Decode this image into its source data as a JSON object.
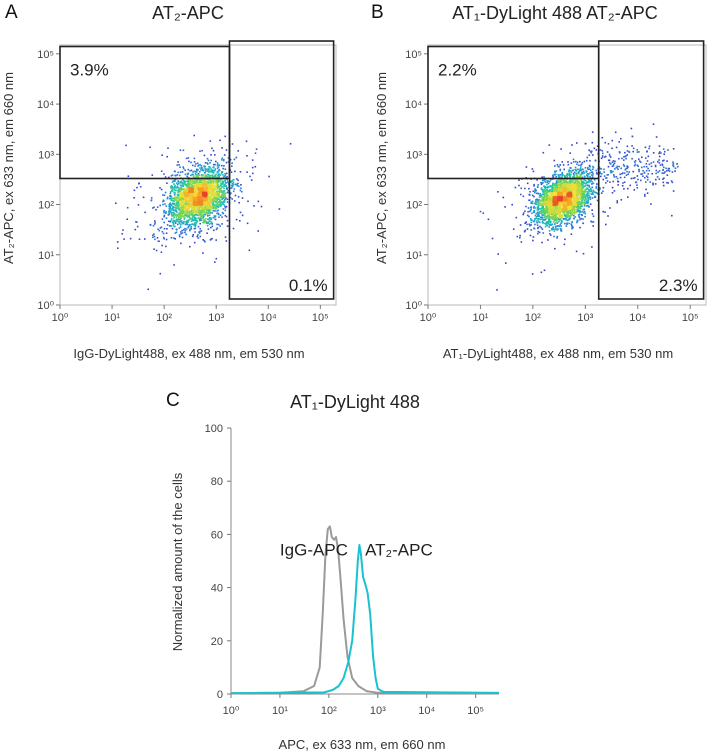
{
  "chart_data": [
    {
      "panel_letter": "A",
      "type": "scatter",
      "title": "AT₂-APC",
      "xlabel": "IgG-DyLight488, ex 488 nm, em 530 nm",
      "ylabel": "AT₂-APC, ex 633 nm, em 660 nm",
      "xscale": "log",
      "yscale": "log",
      "xlim": [
        1,
        200000
      ],
      "ylim": [
        1,
        150000
      ],
      "xtick_labels": [
        "10⁰",
        "10¹",
        "10²",
        "10³",
        "10⁴",
        "10⁵"
      ],
      "ytick_labels": [
        "10⁰",
        "10¹",
        "10²",
        "10³",
        "10⁴",
        "10⁵"
      ],
      "colormap": [
        "#2a1a8c",
        "#3e4fd1",
        "#1f9bd8",
        "#1fc9a0",
        "#8fd640",
        "#f3e23a",
        "#f6a623",
        "#e8432a"
      ],
      "population": {
        "center_x": 450,
        "center_y": 140,
        "sigma_log_x": 0.28,
        "sigma_log_y": 0.26,
        "events": 2600
      },
      "gates": [
        {
          "name": "upper-left",
          "x": [
            1,
            1800
          ],
          "y": [
            330,
            140000
          ],
          "percent": "3.9%",
          "label_at": "top-left"
        },
        {
          "name": "lower-right",
          "x": [
            1800,
            180000
          ],
          "y": [
            1,
            180000
          ],
          "percent": "0.1%",
          "label_at": "bottom-right"
        }
      ]
    },
    {
      "panel_letter": "B",
      "type": "scatter",
      "title": "AT₁-DyLight 488 AT₂-APC",
      "xlabel": "AT₁-DyLight488, ex 488 nm, em 530 nm",
      "ylabel": "AT₂-APC, ex 633 nm, em 660 nm",
      "xscale": "log",
      "yscale": "log",
      "xlim": [
        1,
        200000
      ],
      "ylim": [
        1,
        150000
      ],
      "xtick_labels": [
        "10⁰",
        "10¹",
        "10²",
        "10³",
        "10⁴",
        "10⁵"
      ],
      "ytick_labels": [
        "10⁰",
        "10¹",
        "10²",
        "10³",
        "10⁴",
        "10⁵"
      ],
      "colormap": [
        "#2a1a8c",
        "#3e4fd1",
        "#1f9bd8",
        "#1fc9a0",
        "#8fd640",
        "#f3e23a",
        "#f6a623",
        "#e8432a"
      ],
      "population": {
        "center_x": 380,
        "center_y": 130,
        "sigma_log_x": 0.26,
        "sigma_log_y": 0.24,
        "events": 2600
      },
      "tail": {
        "from_x": 1200,
        "to_x": 60000,
        "center_y": 600,
        "events": 260
      },
      "gates": [
        {
          "name": "upper-left",
          "x": [
            1,
            1800
          ],
          "y": [
            330,
            140000
          ],
          "percent": "2.2%",
          "label_at": "top-left"
        },
        {
          "name": "lower-right",
          "x": [
            1800,
            180000
          ],
          "y": [
            1,
            180000
          ],
          "percent": "2.3%",
          "label_at": "bottom-right"
        }
      ]
    },
    {
      "panel_letter": "C",
      "type": "line",
      "title": "AT₁-DyLight 488",
      "xlabel": "APC, ex 633 nm, em 660 nm",
      "ylabel": "Normalized amount of the cells",
      "xscale": "log",
      "xlim": [
        1,
        300000
      ],
      "ylim": [
        0,
        100
      ],
      "xtick_labels": [
        "10⁰",
        "10¹",
        "10²",
        "10³",
        "10⁴",
        "10⁵"
      ],
      "ytick_labels": [
        "0",
        "20",
        "40",
        "60",
        "80",
        "100"
      ],
      "yticks": [
        0,
        20,
        40,
        60,
        80,
        100
      ],
      "series": [
        {
          "name": "IgG-APC",
          "color": "#9a9a9a",
          "label_at": [
            10,
            52
          ],
          "points": [
            [
              1,
              0.3
            ],
            [
              10,
              0.5
            ],
            [
              30,
              1
            ],
            [
              50,
              3
            ],
            [
              65,
              10
            ],
            [
              75,
              30
            ],
            [
              85,
              52
            ],
            [
              95,
              62
            ],
            [
              105,
              63
            ],
            [
              115,
              59
            ],
            [
              128,
              58
            ],
            [
              140,
              59
            ],
            [
              155,
              54
            ],
            [
              175,
              42
            ],
            [
              200,
              28
            ],
            [
              240,
              14
            ],
            [
              300,
              6
            ],
            [
              400,
              3
            ],
            [
              600,
              1
            ],
            [
              1000,
              0.5
            ],
            [
              300000,
              0.3
            ]
          ]
        },
        {
          "name": "AT₂-APC",
          "color": "#19c2cf",
          "label_at": [
            550,
            52
          ],
          "points": [
            [
              1,
              0.3
            ],
            [
              80,
              0.6
            ],
            [
              120,
              1.5
            ],
            [
              160,
              3
            ],
            [
              200,
              6
            ],
            [
              250,
              12
            ],
            [
              300,
              20
            ],
            [
              350,
              36
            ],
            [
              390,
              50
            ],
            [
              420,
              56
            ],
            [
              450,
              53
            ],
            [
              500,
              44
            ],
            [
              560,
              41
            ],
            [
              620,
              38
            ],
            [
              700,
              30
            ],
            [
              800,
              14
            ],
            [
              900,
              6
            ],
            [
              1000,
              2
            ],
            [
              1300,
              0.8
            ],
            [
              300000,
              0.4
            ]
          ]
        }
      ]
    }
  ]
}
